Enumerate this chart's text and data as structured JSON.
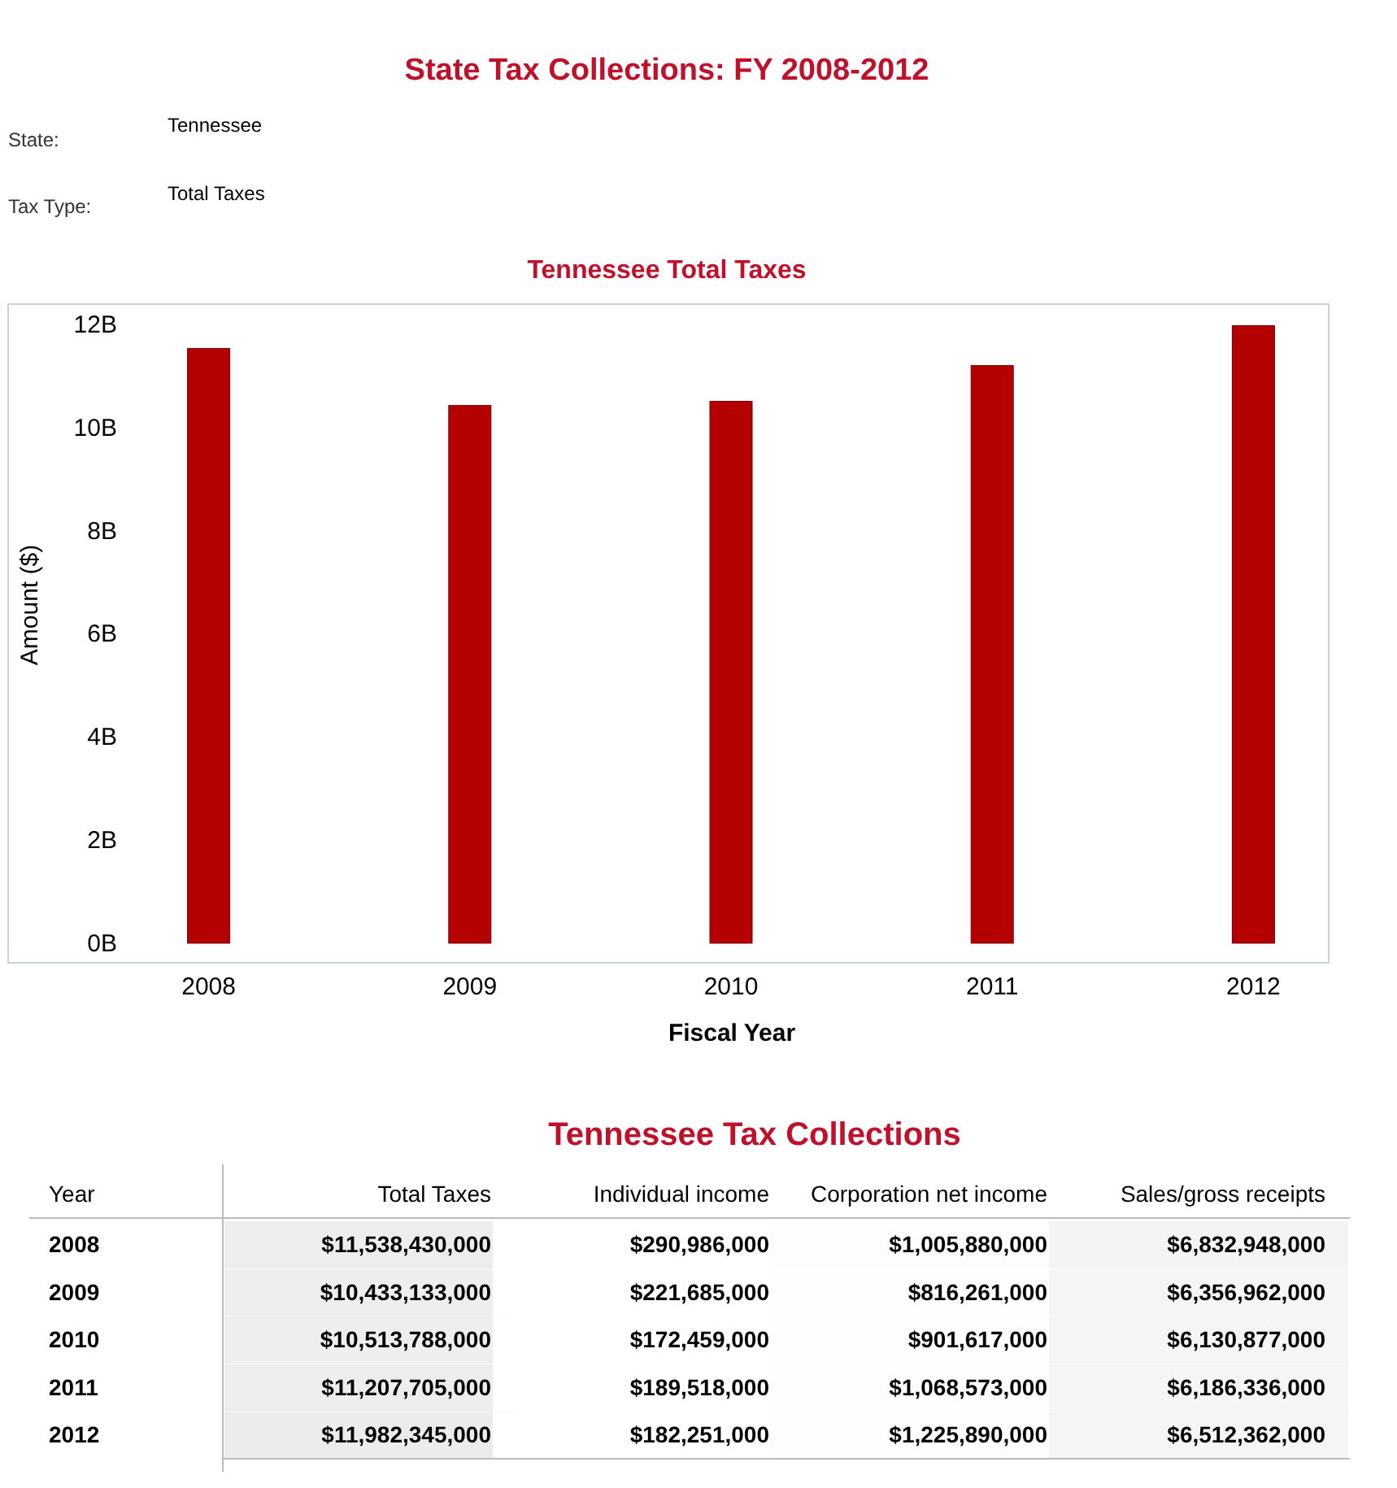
{
  "chart_data": [
    {
      "type": "bar",
      "title": "State Tax Collections: FY 2008-2012",
      "subtitle": "Tennessee Total Taxes",
      "xlabel": "Fiscal Year",
      "ylabel": "Amount ($)",
      "annotations": [
        "State:",
        "Tennessee",
        "Tax Type:",
        "Total Taxes"
      ],
      "categories": [
        "2008",
        "2009",
        "2010",
        "2011",
        "2012"
      ],
      "values": [
        11538430000,
        10433133000,
        10513788000,
        11207705000,
        11982345000
      ],
      "color": "#b40000",
      "ylim": [
        0,
        12400000000
      ],
      "yticks": [
        {
          "value": 0,
          "label": "0B"
        },
        {
          "value": 2000000000,
          "label": "2B"
        },
        {
          "value": 4000000000,
          "label": "4B"
        },
        {
          "value": 6000000000,
          "label": "6B"
        },
        {
          "value": 8000000000,
          "label": "8B"
        },
        {
          "value": 10000000000,
          "label": "10B"
        },
        {
          "value": 12000000000,
          "label": "12B"
        }
      ],
      "grid": false
    },
    {
      "type": "heatmap",
      "title": "Tennessee Tax Collections",
      "ylabel": "Year",
      "categories": [
        "Total Taxes",
        "Individual income",
        "Corporation net income",
        "Sales/gross receipts"
      ],
      "y_categories": [
        "2008",
        "2009",
        "2010",
        "2011",
        "2012"
      ],
      "cells": [
        [
          11538430000,
          290986000,
          1005880000,
          6832948000
        ],
        [
          10433133000,
          221685000,
          816261000,
          6356962000
        ],
        [
          10513788000,
          172459000,
          901617000,
          6130877000
        ],
        [
          11207705000,
          189518000,
          1068573000,
          6186336000
        ],
        [
          11982345000,
          182251000,
          1225890000,
          6512362000
        ]
      ],
      "cell_labels": [
        [
          "$11,538,430,000",
          "$290,986,000",
          "$1,005,880,000",
          "$6,832,948,000"
        ],
        [
          "$10,433,133,000",
          "$221,685,000",
          "$816,261,000",
          "$6,356,962,000"
        ],
        [
          "$10,513,788,000",
          "$172,459,000",
          "$901,617,000",
          "$6,130,877,000"
        ],
        [
          "$11,207,705,000",
          "$189,518,000",
          "$1,068,573,000",
          "$6,186,336,000"
        ],
        [
          "$11,982,345,000",
          "$182,251,000",
          "$1,225,890,000",
          "$6,512,362,000"
        ]
      ]
    }
  ]
}
